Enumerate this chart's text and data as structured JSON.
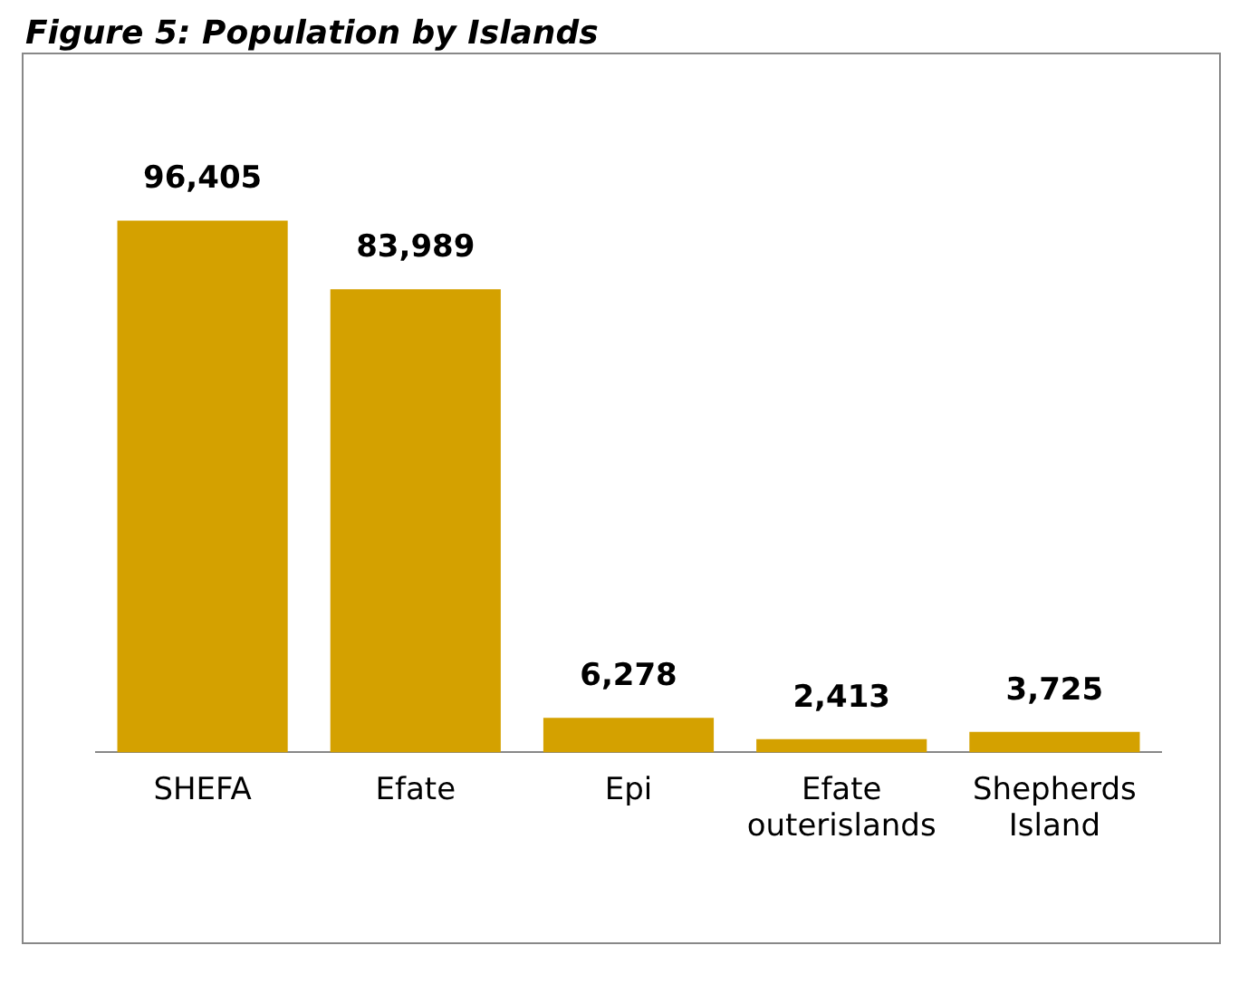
{
  "chart_data": {
    "type": "bar",
    "title": "Figure 5: Population by Islands",
    "categories": [
      "SHEFA",
      "Efate",
      "Epi",
      "Efate outerislands",
      "Shepherds Island"
    ],
    "values": [
      96405,
      83989,
      6278,
      2413,
      3725
    ],
    "value_labels": [
      "96,405",
      "83,989",
      "6,278",
      "2,413",
      "3,725"
    ],
    "color": "#d4a100",
    "grid": false,
    "legend": false
  }
}
